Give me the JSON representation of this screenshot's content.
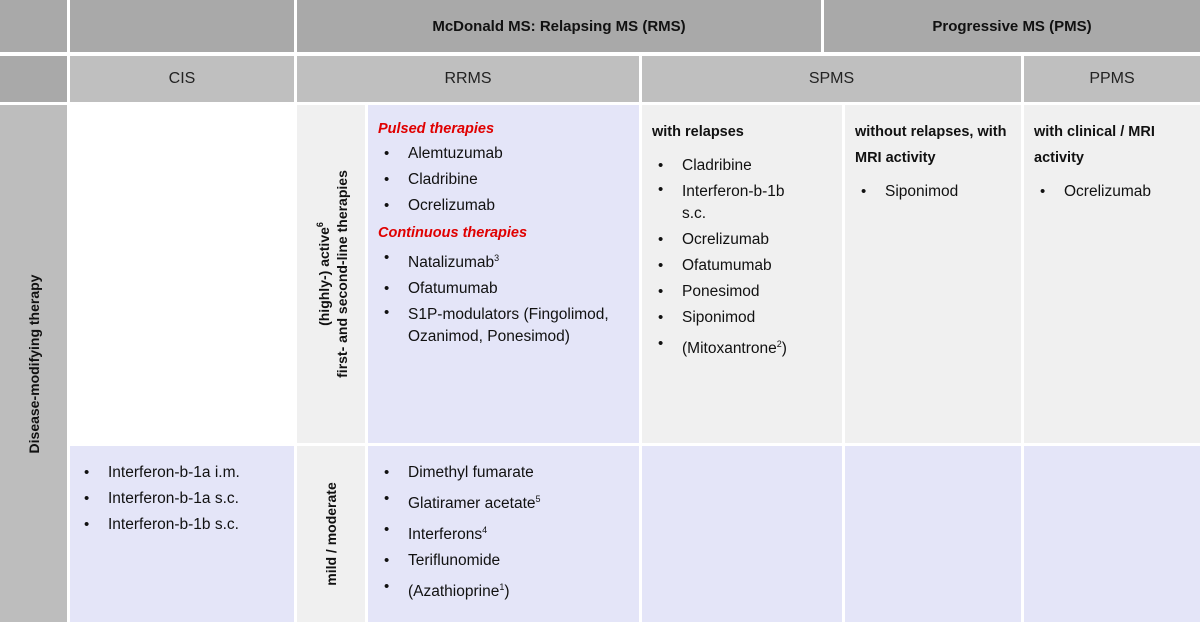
{
  "header_row1": {
    "relapsing": "McDonald MS: Relapsing MS (RMS)",
    "progressive": "Progressive MS (PMS)"
  },
  "header_row2": {
    "cis": "CIS",
    "rrms": "RRMS",
    "spms": "SPMS",
    "ppms": "PPMS"
  },
  "side_label": "Disease-modifying therapy",
  "highly_active": {
    "line1_pre": "(highly-) active",
    "line1_sup": "6",
    "line2": "first- and second-line therapies"
  },
  "mild_label": "mild / moderate",
  "rrms_high": {
    "pulsed_title": "Pulsed therapies",
    "pulsed": [
      "Alemtuzumab",
      "Cladribine",
      "Ocrelizumab"
    ],
    "continuous_title": "Continuous therapies",
    "natalizumab": "Natalizumab",
    "natalizumab_sup": "3",
    "ofatumumab": "Ofatumumab",
    "s1p": "S1P-modulators (Fingolimod, Ozanimod, Ponesimod)"
  },
  "spms_relapses": {
    "title": "with relapses",
    "items": [
      "Cladribine",
      "Interferon-b-1b s.c.",
      "Ocrelizumab",
      "Ofatumumab",
      "Ponesimod",
      "Siponimod"
    ],
    "mito": "(Mitoxantrone",
    "mito_sup": "2",
    "mito_end": ")"
  },
  "spms_no_relapses": {
    "title": "without relapses, with MRI activity",
    "items": [
      "Siponimod"
    ]
  },
  "ppms": {
    "title": "with clinical / MRI activity",
    "items": [
      "Ocrelizumab"
    ]
  },
  "cis_items": [
    "Interferon-b-1a i.m.",
    "Interferon-b-1a s.c.",
    "Interferon-b-1b s.c."
  ],
  "rrms_mild": {
    "dmf": "Dimethyl fumarate",
    "glat": "Glatiramer acetate",
    "glat_sup": "5",
    "ifn": "Interferons",
    "ifn_sup": "4",
    "teri": "Teriflunomide",
    "aza": "(Azathioprine",
    "aza_sup": "1",
    "aza_end": ")"
  }
}
